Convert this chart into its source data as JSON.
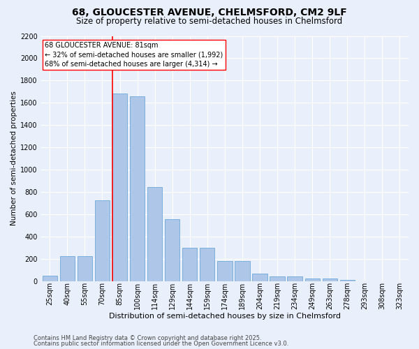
{
  "title1": "68, GLOUCESTER AVENUE, CHELMSFORD, CM2 9LF",
  "title2": "Size of property relative to semi-detached houses in Chelmsford",
  "xlabel": "Distribution of semi-detached houses by size in Chelmsford",
  "ylabel": "Number of semi-detached properties",
  "bar_categories": [
    "25sqm",
    "40sqm",
    "55sqm",
    "70sqm",
    "85sqm",
    "100sqm",
    "114sqm",
    "129sqm",
    "144sqm",
    "159sqm",
    "174sqm",
    "189sqm",
    "204sqm",
    "219sqm",
    "234sqm",
    "249sqm",
    "263sqm",
    "278sqm",
    "293sqm",
    "308sqm",
    "323sqm"
  ],
  "bar_values": [
    50,
    225,
    225,
    725,
    1680,
    1660,
    845,
    555,
    300,
    300,
    180,
    180,
    65,
    40,
    40,
    25,
    25,
    10,
    0,
    0,
    0
  ],
  "bar_color": "#aec6e8",
  "bar_edgecolor": "#5a9fd4",
  "vline_color": "red",
  "annotation_text": "68 GLOUCESTER AVENUE: 81sqm\n← 32% of semi-detached houses are smaller (1,992)\n68% of semi-detached houses are larger (4,314) →",
  "annotation_box_color": "white",
  "annotation_box_edgecolor": "red",
  "ylim": [
    0,
    2200
  ],
  "yticks": [
    0,
    200,
    400,
    600,
    800,
    1000,
    1200,
    1400,
    1600,
    1800,
    2000,
    2200
  ],
  "footnote1": "Contains HM Land Registry data © Crown copyright and database right 2025.",
  "footnote2": "Contains public sector information licensed under the Open Government Licence v3.0.",
  "bg_color": "#eaf0fb",
  "plot_bg_color": "#eaf0fb",
  "grid_color": "white",
  "title1_fontsize": 10,
  "title2_fontsize": 8.5,
  "xlabel_fontsize": 8,
  "ylabel_fontsize": 7.5,
  "tick_fontsize": 7,
  "annotation_fontsize": 7,
  "footnote_fontsize": 6
}
